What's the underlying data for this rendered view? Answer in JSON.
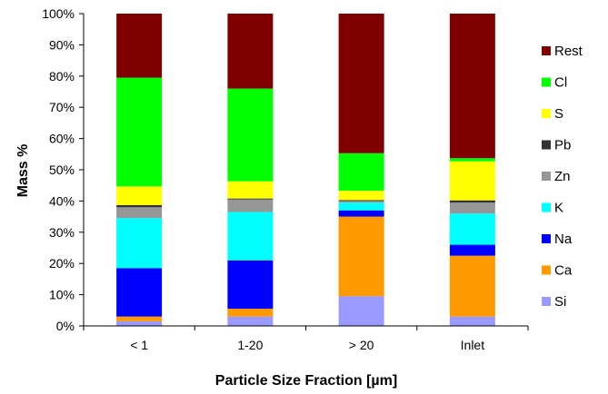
{
  "chart_data": {
    "type": "bar",
    "stacked": true,
    "normalized": true,
    "title": "",
    "xlabel": "Particle Size Fraction [µm]",
    "ylabel": "Mass %",
    "ylim": [
      0,
      100
    ],
    "y_ticks": [
      "0%",
      "10%",
      "20%",
      "30%",
      "40%",
      "50%",
      "60%",
      "70%",
      "80%",
      "90%",
      "100%"
    ],
    "grid": false,
    "legend_position": "right",
    "categories": [
      "< 1",
      "1-20",
      "> 20",
      "Inlet"
    ],
    "series": [
      {
        "name": "Si",
        "color": "#9999ff",
        "values": [
          1.5,
          3,
          9.5,
          3
        ]
      },
      {
        "name": "Ca",
        "color": "#ff9900",
        "values": [
          1.5,
          2.5,
          25.5,
          19.5
        ]
      },
      {
        "name": "Na",
        "color": "#0000ff",
        "values": [
          15.5,
          15.5,
          2,
          3.5
        ]
      },
      {
        "name": "K",
        "color": "#00ffff",
        "values": [
          16,
          15.5,
          2.5,
          10
        ]
      },
      {
        "name": "Zn",
        "color": "#969696",
        "values": [
          3.5,
          4,
          0.5,
          3.5
        ]
      },
      {
        "name": "Pb",
        "color": "#333333",
        "values": [
          0.7,
          0.3,
          0.3,
          0.7
        ]
      },
      {
        "name": "S",
        "color": "#ffff00",
        "values": [
          6,
          5.5,
          3,
          12.5
        ]
      },
      {
        "name": "Cl",
        "color": "#00ff00",
        "values": [
          34.8,
          29.7,
          12,
          1
        ]
      },
      {
        "name": "Rest",
        "color": "#800000",
        "values": [
          20.5,
          24,
          44.7,
          46.3
        ]
      }
    ]
  }
}
